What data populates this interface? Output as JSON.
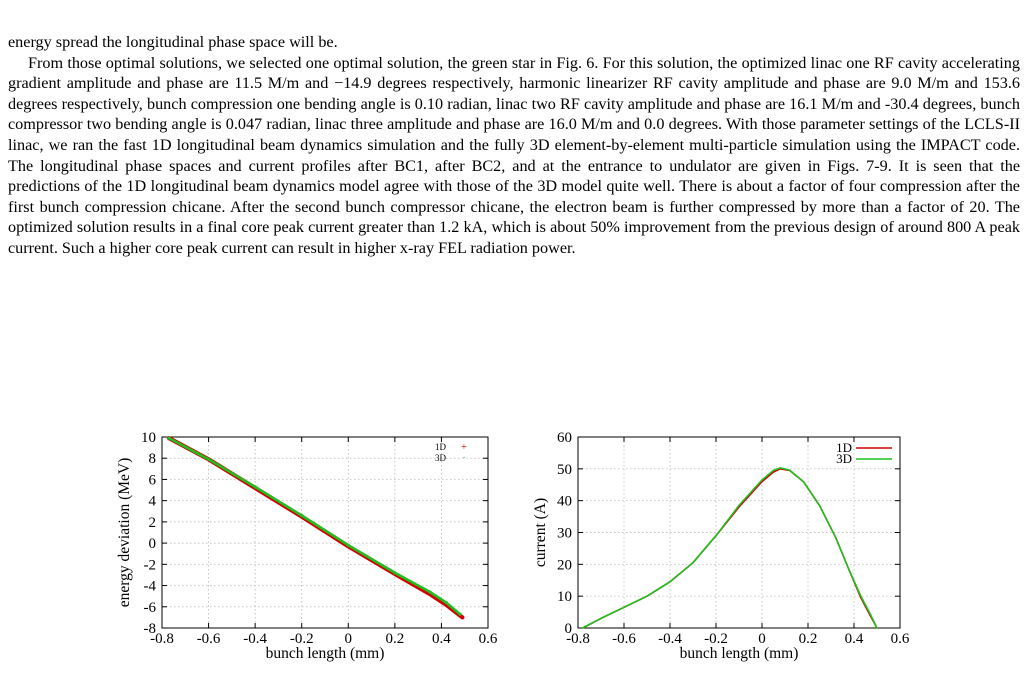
{
  "page": {
    "paragraph_cont": "energy spread the longitudinal phase space will be.",
    "paragraph_main": "From those optimal solutions, we selected one optimal solution, the green star in Fig. 6. For this solution, the optimized linac one RF cavity accelerating gradient amplitude and phase are 11.5 M/m and −14.9 degrees respectively, harmonic linearizer RF cavity amplitude and phase are 9.0 M/m and 153.6 degrees respectively, bunch compression one bending angle is 0.10 radian, linac two RF cavity amplitude and phase are 16.1 M/m and -30.4 degrees, bunch compressor two bending angle is 0.047 radian, linac three amplitude and phase are 16.0 M/m and 0.0 degrees. With those parameter settings of the LCLS-II linac, we ran the fast 1D longitudinal beam dynamics simulation and the fully 3D element-by-element multi-particle simulation using the IMPACT code. The longitudinal phase spaces and current profiles after BC1, after BC2, and at the entrance to undulator are given in Figs. 7-9. It is seen that the predictions of the 1D longitudinal beam dynamics model agree with those of the 3D model quite well. There is about a factor of four compression after the first bunch compression chicane. After the second bunch compressor chicane, the electron beam is further compressed by more than a factor of 20. The optimized solution results in a final core peak current greater than 1.2 kA, which is about 50% improvement from the previous design of around 800 A peak current. Such a higher core peak current can result in higher x-ray FEL radiation power."
  },
  "colors": {
    "series_1d": "#d40000",
    "series_3d": "#1fbf1f",
    "grid": "#b0b0b0"
  },
  "chart_data": [
    {
      "type": "scatter",
      "xlabel": "bunch length (mm)",
      "ylabel": "energy deviation (MeV)",
      "xlim": [
        -0.8,
        0.6
      ],
      "ylim": [
        -8,
        10
      ],
      "xticks": [
        "-0.8",
        "-0.6",
        "-0.4",
        "-0.2",
        "0",
        "0.2",
        "0.4",
        "0.6"
      ],
      "yticks": [
        "-8",
        "-6",
        "-4",
        "-2",
        "0",
        "2",
        "4",
        "6",
        "8",
        "10"
      ],
      "grid": true,
      "legend_position": "top-right",
      "series": [
        {
          "name": "1D",
          "x": [
            -0.77,
            -0.6,
            -0.4,
            -0.2,
            0.0,
            0.2,
            0.35,
            0.42,
            0.49
          ],
          "y": [
            9.9,
            7.9,
            5.2,
            2.5,
            -0.3,
            -2.9,
            -4.8,
            -5.8,
            -7.0
          ]
        },
        {
          "name": "3D",
          "x": [
            -0.77,
            -0.6,
            -0.4,
            -0.2,
            0.0,
            0.2,
            0.35,
            0.42,
            0.48
          ],
          "y": [
            9.9,
            7.9,
            5.3,
            2.6,
            -0.2,
            -2.8,
            -4.6,
            -5.6,
            -6.7
          ]
        }
      ]
    },
    {
      "type": "line",
      "xlabel": "bunch length (mm)",
      "ylabel": "current (A)",
      "xlim": [
        -0.8,
        0.6
      ],
      "ylim": [
        0,
        60
      ],
      "xticks": [
        "-0.8",
        "-0.6",
        "-0.4",
        "-0.2",
        "0",
        "0.2",
        "0.4",
        "0.6"
      ],
      "yticks": [
        "0",
        "10",
        "20",
        "30",
        "40",
        "50",
        "60"
      ],
      "grid": true,
      "legend_position": "top-right",
      "series": [
        {
          "name": "1D",
          "x": [
            -0.78,
            -0.7,
            -0.6,
            -0.5,
            -0.4,
            -0.3,
            -0.2,
            -0.1,
            0.0,
            0.05,
            0.08,
            0.12,
            0.18,
            0.25,
            0.32,
            0.38,
            0.43,
            0.47,
            0.5
          ],
          "y": [
            0,
            3,
            6.5,
            10,
            14.5,
            20.5,
            29,
            38,
            46,
            49,
            50,
            49.5,
            46,
            38.5,
            28.5,
            18,
            9.5,
            4,
            0
          ]
        },
        {
          "name": "3D",
          "x": [
            -0.78,
            -0.7,
            -0.6,
            -0.5,
            -0.4,
            -0.3,
            -0.2,
            -0.1,
            0.0,
            0.05,
            0.08,
            0.12,
            0.18,
            0.25,
            0.32,
            0.38,
            0.43,
            0.47,
            0.5
          ],
          "y": [
            0,
            3,
            6.5,
            10,
            14.5,
            20.5,
            29,
            38.5,
            46.5,
            49.5,
            50.3,
            49.6,
            46,
            38.5,
            28.5,
            18,
            10,
            4.5,
            0
          ]
        }
      ]
    }
  ]
}
